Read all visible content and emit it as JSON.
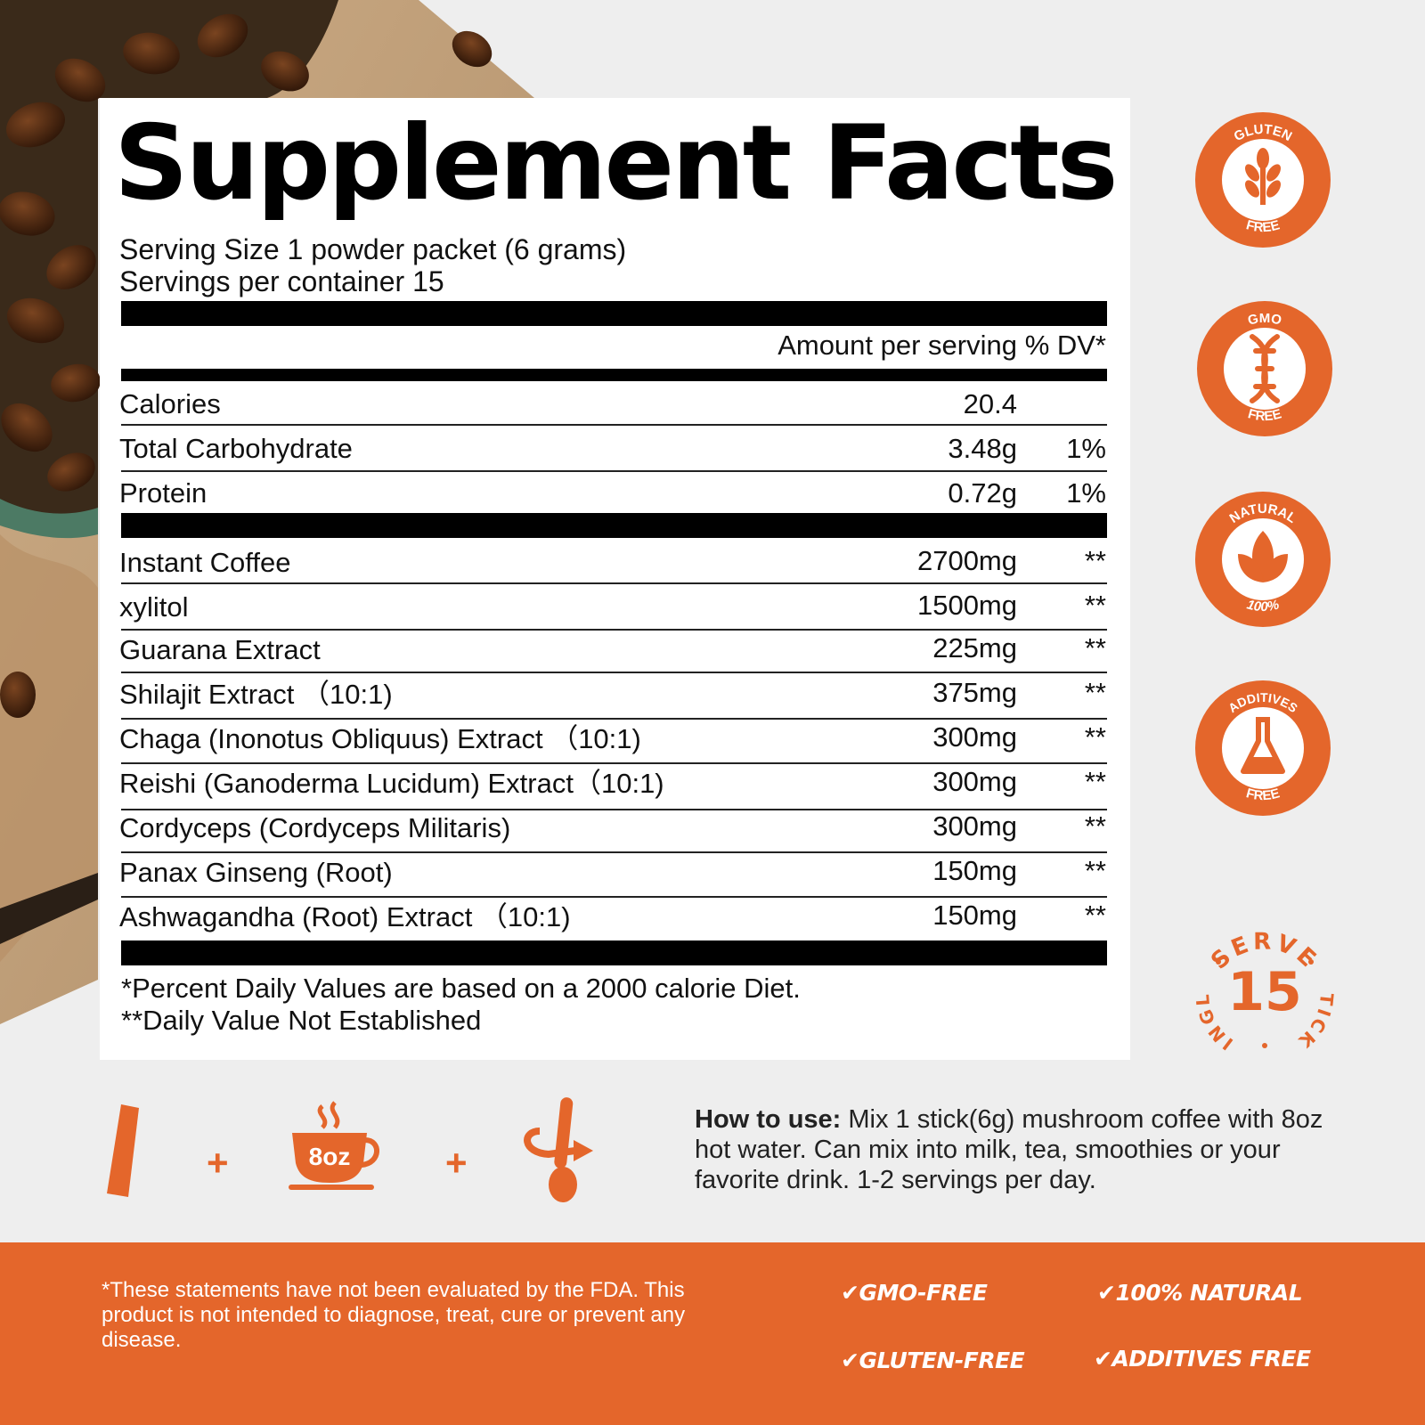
{
  "panel": {
    "title": "Supplement Facts",
    "serving_size": "Serving Size 1 powder packet (6 grams)",
    "servings_per_container": "Servings per container 15",
    "col_amount": "Amount per serving",
    "col_dv": "% DV*",
    "nutrients": [
      {
        "name": "Calories",
        "amount": "20.4",
        "dv": ""
      },
      {
        "name": "Total Carbohydrate",
        "amount": "3.48g",
        "dv": "1%"
      },
      {
        "name": "Protein",
        "amount": "0.72g",
        "dv": "1%"
      }
    ],
    "ingredients": [
      {
        "name": "Instant Coffee",
        "amount": "2700mg",
        "dv": "**"
      },
      {
        "name": "xylitol",
        "amount": "1500mg",
        "dv": "**"
      },
      {
        "name": "Guarana Extract",
        "amount": "225mg",
        "dv": "**"
      },
      {
        "name": "Shilajit  Extract （10:1)",
        "amount": "375mg",
        "dv": "**"
      },
      {
        "name": "Chaga (Inonotus Obliquus) Extract （10:1)",
        "amount": "300mg",
        "dv": "**"
      },
      {
        "name": "Reishi (Ganoderma Lucidum)  Extract（10:1)",
        "amount": "300mg",
        "dv": "**"
      },
      {
        "name": "Cordyceps (Cordyceps Militaris)",
        "amount": "300mg",
        "dv": "**"
      },
      {
        "name": "Panax Ginseng (Root)",
        "amount": "150mg",
        "dv": "**"
      },
      {
        "name": "Ashwagandha (Root) Extract （10:1)",
        "amount": "150mg",
        "dv": "**"
      }
    ],
    "footnote_1": "*Percent Daily Values are based on a 2000 calorie Diet.",
    "footnote_2": "**Daily Value Not Established"
  },
  "badges": [
    {
      "top": "GLUTEN",
      "bottom": "FREE",
      "icon": "wheat-icon"
    },
    {
      "top": "GMO",
      "bottom": "FREE",
      "icon": "dna-icon"
    },
    {
      "top": "NATURAL",
      "bottom": "100%",
      "icon": "leaf-icon"
    },
    {
      "top": "ADDITIVES",
      "bottom": "FREE",
      "icon": "flask-icon"
    }
  ],
  "stick_badge": {
    "top": "SERVE",
    "number": "15",
    "left": "SINGLE",
    "right": "STICKS"
  },
  "how_to": {
    "cup_label": "8oz",
    "plus": "+",
    "label": "How to use:",
    "text": " Mix 1 stick(6g) mushroom coffee with 8oz hot water. Can mix into milk, tea, smoothies or your favorite drink. 1-2 servings per day."
  },
  "footer": {
    "disclaimer": "*These statements have not been evaluated by the FDA. This product is not intended to diagnose, treat, cure or prevent any disease.",
    "features": [
      "GMO-FREE",
      "100% NATURAL",
      "GLUTEN-FREE",
      "ADDITIVES FREE"
    ]
  },
  "colors": {
    "accent": "#e4662b",
    "text": "#111111",
    "panel": "#ffffff"
  }
}
